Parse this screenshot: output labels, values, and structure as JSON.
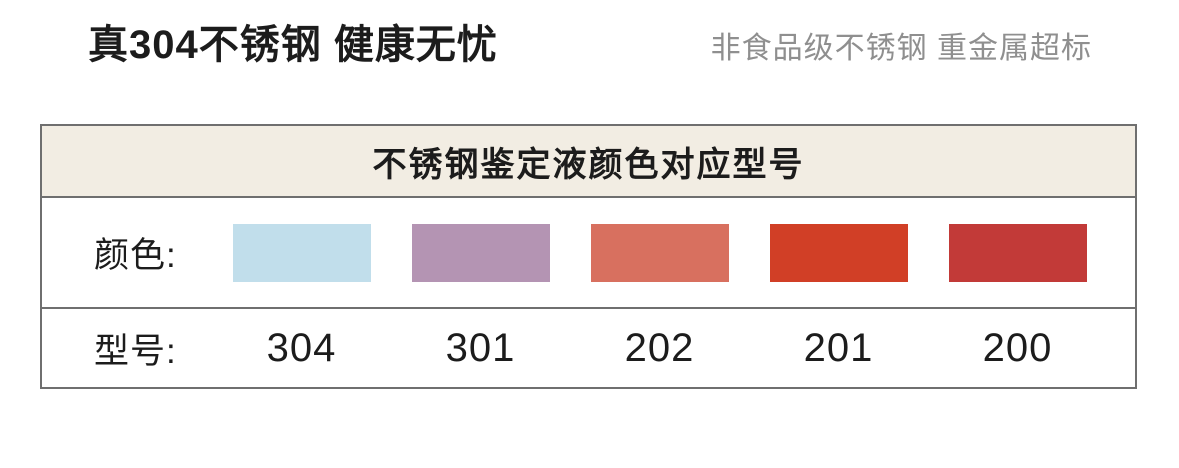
{
  "header": {
    "title": "真304不锈钢 健康无忧",
    "subtitle": "非食品级不锈钢 重金属超标"
  },
  "table": {
    "title": "不锈钢鉴定液颜色对应型号",
    "color_row_label": "颜色:",
    "model_row_label": "型号:",
    "columns": [
      {
        "model": "304",
        "swatch_color": "#c1deeb",
        "color_name": "light-blue"
      },
      {
        "model": "301",
        "swatch_color": "#b494b3",
        "color_name": "mauve-purple"
      },
      {
        "model": "202",
        "swatch_color": "#d8705f",
        "color_name": "salmon-coral"
      },
      {
        "model": "201",
        "swatch_color": "#d13f26",
        "color_name": "orange-red"
      },
      {
        "model": "200",
        "swatch_color": "#c23a38",
        "color_name": "brick-red"
      }
    ]
  },
  "colors": {
    "table_border": "#6f6f6f",
    "table_header_bg": "#f2ede3",
    "subtitle_gray": "#8f8f8f",
    "text_black": "#1c1c1c",
    "page_bg": "#ffffff"
  }
}
